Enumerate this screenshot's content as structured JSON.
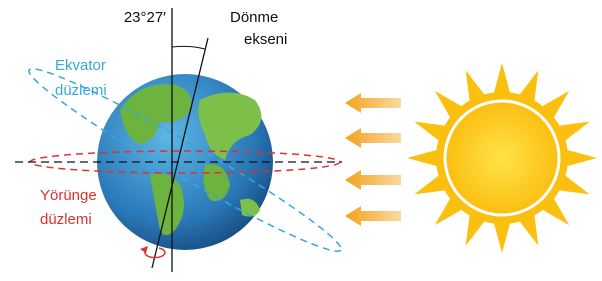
{
  "axis": {
    "angle": "23°27′",
    "label": [
      "Dönme",
      "ekseni"
    ]
  },
  "equator_plane": {
    "label": [
      "Ekvator",
      "düzlemi"
    ]
  },
  "orbit_plane": {
    "label": [
      "Yörünge",
      "düzlemi"
    ]
  }
}
